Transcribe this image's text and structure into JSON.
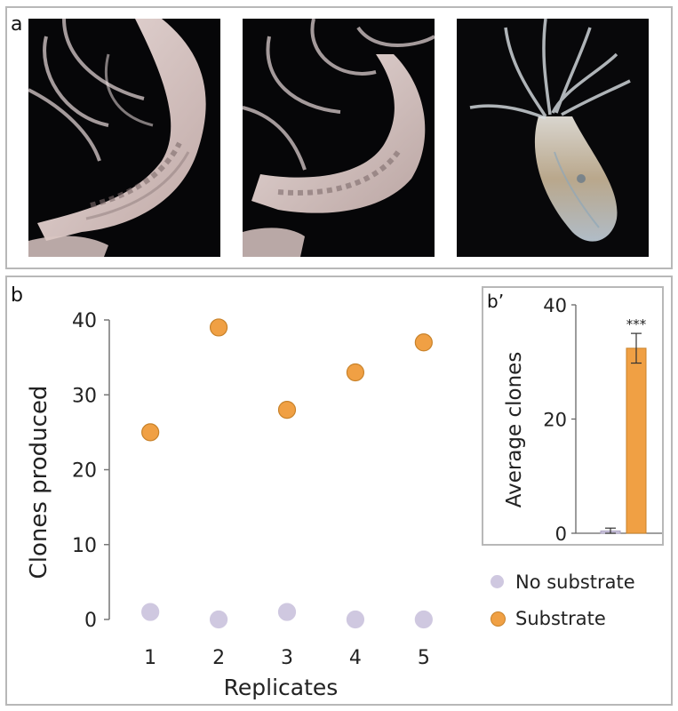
{
  "panel_a": {
    "letter": "a",
    "photos": [
      {
        "name": "polyp-photo-1",
        "subject": "sea anemone polyp, close-up of body column"
      },
      {
        "name": "polyp-photo-2",
        "subject": "sea anemone polyp, close-up of body column"
      },
      {
        "name": "polyp-photo-3",
        "subject": "sea anemone with tentacles, whole animal"
      }
    ]
  },
  "panel_b": {
    "letter": "b",
    "inset_letter": "b’"
  },
  "colors": {
    "substrate": "#f0a044",
    "no_substrate": "#cfc8e0",
    "substrate_edge": "#c8822a"
  },
  "chart_data": [
    {
      "type": "scatter",
      "title": "",
      "xlabel": "Replicates",
      "ylabel": "Clones produced",
      "x_ticks": [
        "1",
        "2",
        "3",
        "4",
        "5"
      ],
      "y_ticks": [
        "0",
        "10",
        "20",
        "30",
        "40"
      ],
      "xlim": [
        0.4,
        5.6
      ],
      "ylim": [
        0,
        40
      ],
      "series": [
        {
          "name": "No substrate",
          "x": [
            1,
            2,
            3,
            4,
            5
          ],
          "y": [
            1,
            0,
            1,
            0,
            0
          ]
        },
        {
          "name": "Substrate",
          "x": [
            1,
            2,
            3,
            4,
            5
          ],
          "y": [
            25,
            39,
            28,
            33,
            37
          ]
        }
      ],
      "legend": {
        "position": "bottom-right",
        "entries": [
          "No substrate",
          "Substrate"
        ]
      }
    },
    {
      "type": "bar",
      "title": "",
      "xlabel": "",
      "ylabel": "Average clones",
      "categories": [
        "No substrate",
        "Substrate"
      ],
      "values": [
        0.4,
        32.4
      ],
      "errors": [
        0.5,
        2.6
      ],
      "y_ticks": [
        "0",
        "20",
        "40"
      ],
      "ylim": [
        0,
        40
      ],
      "annotation": "***"
    }
  ]
}
